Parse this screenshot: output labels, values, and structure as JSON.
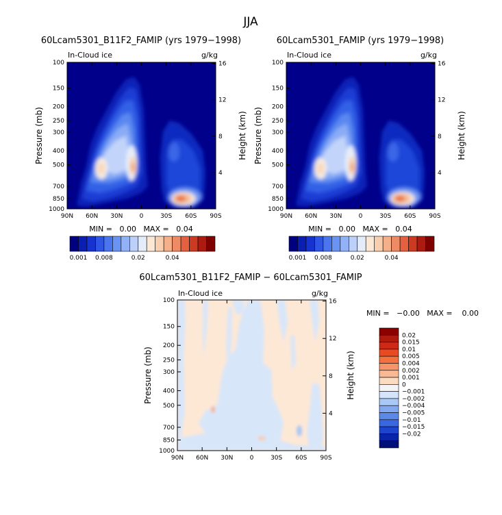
{
  "figure_title": "JJA",
  "chart_data": [
    {
      "type": "heatmap",
      "title": "60Lcam5301_B11F2_FAMIP (yrs 1979−1998)",
      "field_label": "In-Cloud ice",
      "units": "g/kg",
      "ylabel": "Pressure (mb)",
      "ylabel_right": "Height (km)",
      "x_ticks": [
        "90N",
        "60N",
        "30N",
        "0",
        "30S",
        "60S",
        "90S"
      ],
      "y_ticks": [
        "100",
        "150",
        "200",
        "250",
        "300",
        "400",
        "500",
        "700",
        "850",
        "1000"
      ],
      "y_ticks_right": [
        "16",
        "12",
        "8",
        "4"
      ],
      "stats": "MIN =   0.00   MAX =   0.04",
      "colorbar_labels": [
        "0.001",
        "0.008",
        "0.02",
        "0.04"
      ],
      "colorbar_colors": [
        "#000080",
        "#0a1fb0",
        "#1633d0",
        "#2e55e4",
        "#4a75ee",
        "#6a94f4",
        "#92b2f8",
        "#bcd0fa",
        "#e4ecfb",
        "#fbe8d4",
        "#f8cfae",
        "#f4b08a",
        "#ee8a64",
        "#e4603e",
        "#cc3a22",
        "#ac1a10",
        "#800000"
      ],
      "ylim": [
        1000,
        100
      ],
      "xlim": [
        "90N",
        "90S"
      ]
    },
    {
      "type": "heatmap",
      "title": "60Lcam5301_FAMIP (yrs 1979−1998)",
      "field_label": "In-Cloud ice",
      "units": "g/kg",
      "ylabel": "Pressure (mb)",
      "ylabel_right": "Height (km)",
      "x_ticks": [
        "90N",
        "60N",
        "30N",
        "0",
        "30S",
        "60S",
        "90S"
      ],
      "y_ticks": [
        "100",
        "150",
        "200",
        "250",
        "300",
        "400",
        "500",
        "700",
        "850",
        "1000"
      ],
      "y_ticks_right": [
        "16",
        "12",
        "8",
        "4"
      ],
      "stats": "MIN =   0.00   MAX =   0.04",
      "colorbar_labels": [
        "0.001",
        "0.008",
        "0.02",
        "0.04"
      ],
      "ylim": [
        1000,
        100
      ],
      "xlim": [
        "90N",
        "90S"
      ]
    },
    {
      "type": "heatmap",
      "title": "60Lcam5301_B11F2_FAMIP − 60Lcam5301_FAMIP",
      "field_label": "In-Cloud ice",
      "units": "g/kg",
      "ylabel": "Pressure (mb)",
      "ylabel_right": "Height (km)",
      "x_ticks": [
        "90N",
        "60N",
        "30N",
        "0",
        "30S",
        "60S",
        "90S"
      ],
      "y_ticks": [
        "100",
        "150",
        "200",
        "250",
        "300",
        "400",
        "500",
        "700",
        "850",
        "1000"
      ],
      "y_ticks_right": [
        "16",
        "12",
        "8",
        "4"
      ],
      "stats": "MIN =   −0.00   MAX =    0.00",
      "colorbar_labels": [
        "0.02",
        "0.015",
        "0.01",
        "0.005",
        "0.004",
        "0.002",
        "0.001",
        "0",
        "−0.001",
        "−0.002",
        "−0.004",
        "−0.005",
        "−0.01",
        "−0.015",
        "−0.02"
      ],
      "colorbar_colors": [
        "#8b0000",
        "#b01a0e",
        "#cc2a16",
        "#e84a22",
        "#f4703e",
        "#f6946a",
        "#f9b994",
        "#fcdcc0",
        "#f4f4f4",
        "#d4e4fa",
        "#aac8f6",
        "#82a8f0",
        "#5c88ea",
        "#3a66e0",
        "#1c44cc",
        "#0a24a8",
        "#00107a"
      ],
      "ylim": [
        1000,
        100
      ],
      "xlim": [
        "90N",
        "90S"
      ]
    }
  ]
}
